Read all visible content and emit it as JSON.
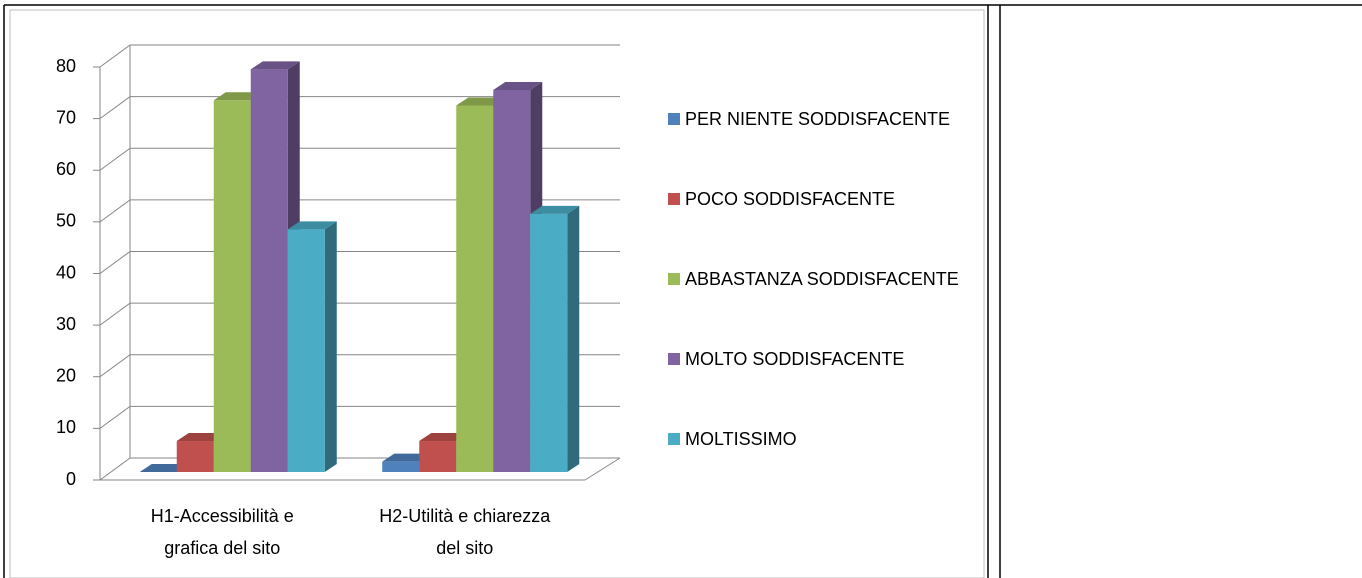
{
  "chart_data": {
    "type": "bar3d",
    "categories": [
      "H1-Accessibilità e grafica del sito",
      "H2-Utilità e chiarezza del sito"
    ],
    "series": [
      {
        "name": "PER NIENTE SODDISFACENTE",
        "color": "#4f81bd",
        "values": [
          0,
          2
        ]
      },
      {
        "name": "POCO SODDISFACENTE",
        "color": "#c0504d",
        "values": [
          6,
          6
        ]
      },
      {
        "name": "ABBASTANZA SODDISFACENTE",
        "color": "#9bbb59",
        "values": [
          72,
          71
        ]
      },
      {
        "name": "MOLTO SODDISFACENTE",
        "color": "#8064a2",
        "values": [
          78,
          74
        ]
      },
      {
        "name": "MOLTISSIMO",
        "color": "#4bacc6",
        "values": [
          47,
          50
        ]
      }
    ],
    "ylim": [
      0,
      80
    ],
    "yticks": [
      0,
      10,
      20,
      30,
      40,
      50,
      60,
      70,
      80
    ],
    "grid": true,
    "legend": "right"
  }
}
